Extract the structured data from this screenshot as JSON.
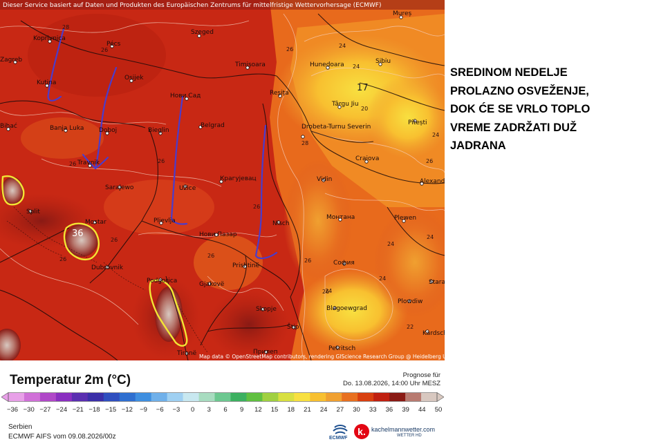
{
  "header": {
    "notice": "Dieser Service basiert auf Daten und Produkten des Europäischen Zentrums für mittelfristige Wettervorhersage (ECMWF)"
  },
  "headline": {
    "lines": [
      "SREDINOM NEDELJE",
      "PROLAZNO OSVEŽENJE,",
      "DOK ĆE SE VRLO TOPLO",
      "VREME ZADRŽATI DUŽ",
      "JADRANA"
    ]
  },
  "map": {
    "attribution": "Map data © OpenStreetMap contributors, rendering GIScience Research Group @ Heidelberg University",
    "cities": [
      "Koprivnica",
      "Pécs",
      "Szeged",
      "Zagreb",
      "Osijek",
      "Timișoara",
      "Hunedoara",
      "Sibiu",
      "Mureș",
      "Kutina",
      "Нови Сад",
      "Reșița",
      "Târgu Jiu",
      "Pitești",
      "Bihać",
      "Banja Luka",
      "Doboj",
      "Belgrad",
      "Drobeta-Turnu Severin",
      "Bieglin",
      "Travnik",
      "Craiova",
      "Крагујевац",
      "Alexandria",
      "Sarajewo",
      "Užice",
      "Vidin",
      "Split",
      "Pljevlja",
      "Nisch",
      "Монтана",
      "Plewen",
      "Mostar",
      "Нови Пазар",
      "Dubrovnik",
      "Prishtinë",
      "София",
      "Podgorica",
      "Gjakovë",
      "Stara",
      "Plowdiw",
      "Skopje",
      "Blagoewgrad",
      "Štip",
      "Kardsch",
      "Tiranë",
      "Прилеп",
      "Petritsch"
    ],
    "contour_labels": [
      "28",
      "26",
      "26",
      "26",
      "24",
      "24",
      "24",
      "26",
      "26",
      "26",
      "26",
      "24",
      "20",
      "17",
      "26",
      "26",
      "36",
      "24",
      "24",
      "24",
      "26",
      "22",
      "28",
      "26"
    ],
    "hot_spot_value": "36",
    "cool_spot_value": "17"
  },
  "legend": {
    "title": "Temperatur 2m (°C)",
    "prognose_label": "Prognose für",
    "valid_time": "Do. 13.08.2026, 14:00 Uhr MESZ",
    "ticks": [
      "-36",
      "-30",
      "-27",
      "-24",
      "-21",
      "-18",
      "-15",
      "-12",
      "-9",
      "-6",
      "-3",
      "0",
      "3",
      "6",
      "9",
      "12",
      "15",
      "18",
      "21",
      "24",
      "27",
      "30",
      "33",
      "36",
      "39",
      "44",
      "50"
    ],
    "colors": [
      "#e8a0e8",
      "#d070d8",
      "#b048c8",
      "#8a2fc0",
      "#5a2fb0",
      "#3b2fa8",
      "#2f4fbf",
      "#2f6fd0",
      "#3f8fe0",
      "#6fb0ea",
      "#9fd0f2",
      "#c8e8f0",
      "#a8dcc0",
      "#6cc890",
      "#3cb060",
      "#60c040",
      "#a0d040",
      "#d8e040",
      "#f8e040",
      "#f8c030",
      "#f0a030",
      "#e87020",
      "#d84010",
      "#c02010",
      "#8a1a14",
      "#b87a70",
      "#d8c8c0"
    ],
    "region": "Serbien",
    "model": "ECMWF AIFS vom 09.08.2026/00z",
    "ecmwf_label": "ECMWF",
    "brand": "kachelmannwetter.com",
    "brand_sub": "WETTER HD",
    "brand_icon": "k."
  }
}
